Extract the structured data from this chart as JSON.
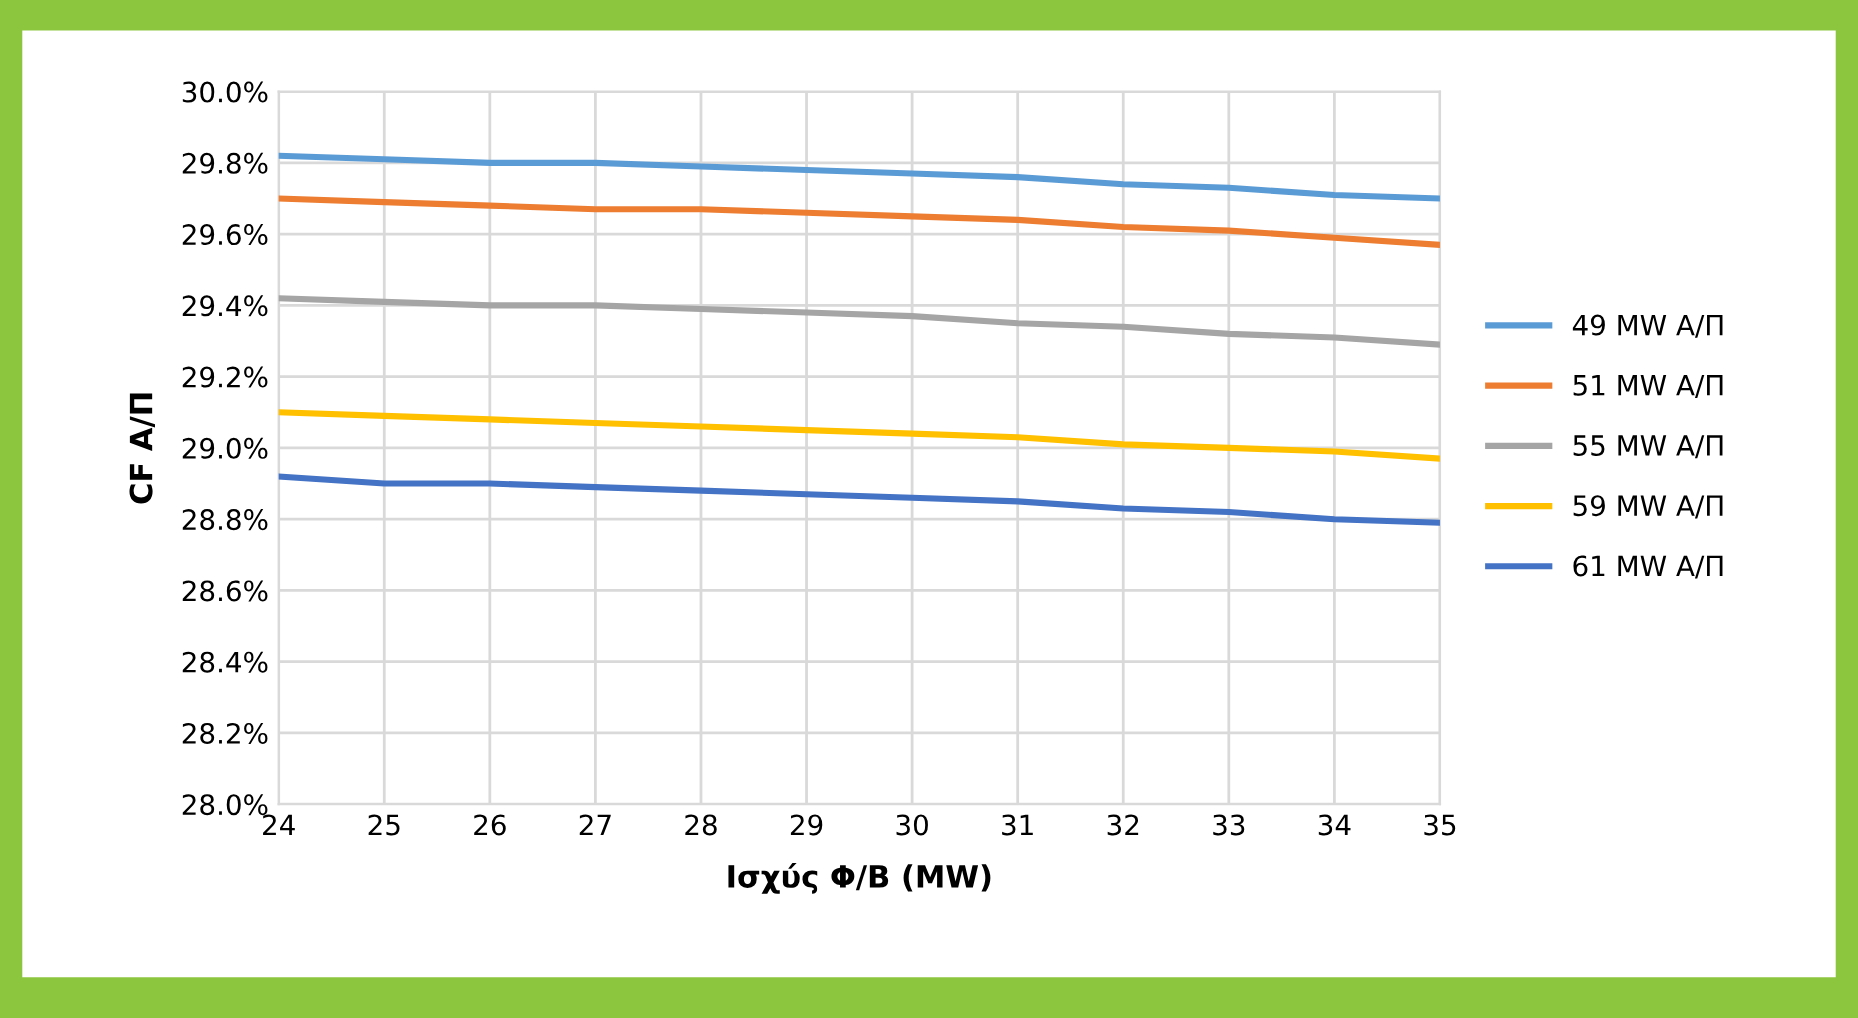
{
  "chart_data": {
    "type": "line",
    "xlabel": "Ισχύς Φ/Β (MW)",
    "ylabel": "CF Α/Π",
    "x": [
      24,
      25,
      26,
      27,
      28,
      29,
      30,
      31,
      32,
      33,
      34,
      35
    ],
    "series": [
      {
        "name": "49 MW Α/Π",
        "color": "#5b9bd5",
        "values": [
          29.82,
          29.81,
          29.8,
          29.8,
          29.79,
          29.78,
          29.77,
          29.76,
          29.74,
          29.73,
          29.71,
          29.7
        ]
      },
      {
        "name": "51 MW Α/Π",
        "color": "#ed7d31",
        "values": [
          29.7,
          29.69,
          29.68,
          29.67,
          29.67,
          29.66,
          29.65,
          29.64,
          29.62,
          29.61,
          29.59,
          29.57
        ]
      },
      {
        "name": "55 MW Α/Π",
        "color": "#a5a5a5",
        "values": [
          29.42,
          29.41,
          29.4,
          29.4,
          29.39,
          29.38,
          29.37,
          29.35,
          29.34,
          29.32,
          29.31,
          29.29
        ]
      },
      {
        "name": "59 MW Α/Π",
        "color": "#ffc000",
        "values": [
          29.1,
          29.09,
          29.08,
          29.07,
          29.06,
          29.05,
          29.04,
          29.03,
          29.01,
          29.0,
          28.99,
          28.97
        ]
      },
      {
        "name": "61 MW Α/Π",
        "color": "#4472c4",
        "values": [
          28.92,
          28.9,
          28.9,
          28.89,
          28.88,
          28.87,
          28.86,
          28.85,
          28.83,
          28.82,
          28.8,
          28.79
        ]
      }
    ],
    "xlim": [
      24,
      35
    ],
    "xticks": [
      24,
      25,
      26,
      27,
      28,
      29,
      30,
      31,
      32,
      33,
      34,
      35
    ],
    "ylim": [
      28.0,
      30.0
    ],
    "yticks": [
      {
        "value": 28.0,
        "label": "28.0%"
      },
      {
        "value": 28.2,
        "label": "28.2%"
      },
      {
        "value": 28.4,
        "label": "28.4%"
      },
      {
        "value": 28.6,
        "label": "28.6%"
      },
      {
        "value": 28.8,
        "label": "28.8%"
      },
      {
        "value": 29.0,
        "label": "29.0%"
      },
      {
        "value": 29.2,
        "label": "29.2%"
      },
      {
        "value": 29.4,
        "label": "29.4%"
      },
      {
        "value": 29.6,
        "label": "29.6%"
      },
      {
        "value": 29.8,
        "label": "29.8%"
      },
      {
        "value": 30.0,
        "label": "30.0%"
      }
    ],
    "grid": true,
    "legend": "right",
    "marker": "none",
    "line_style": "solid"
  }
}
